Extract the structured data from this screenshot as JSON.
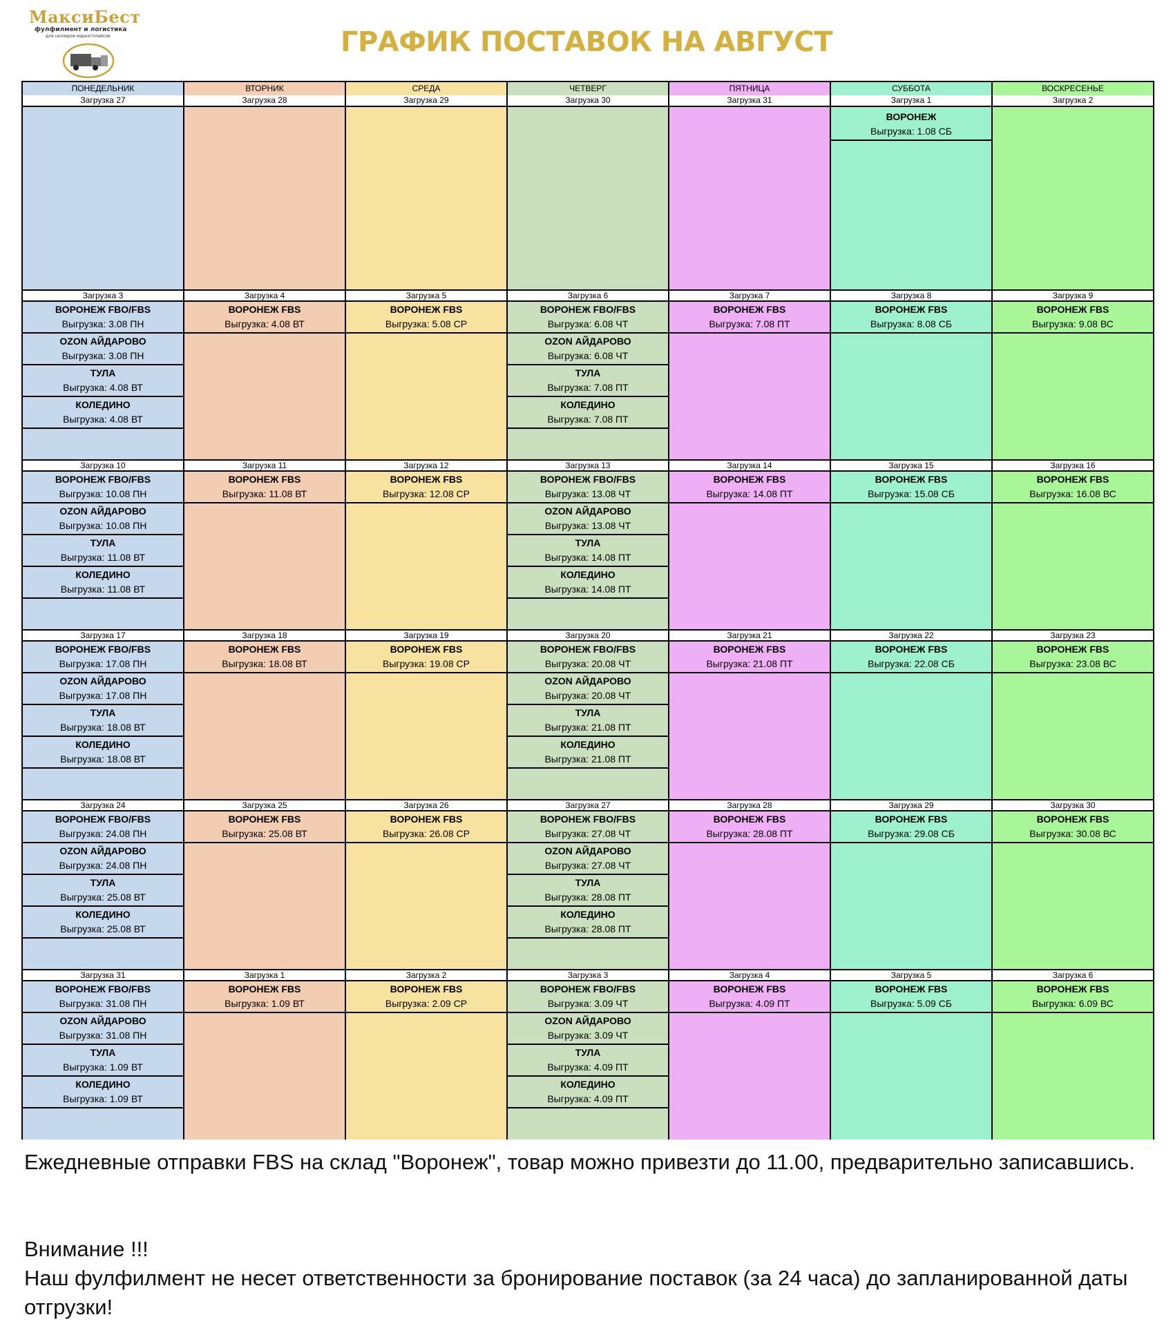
{
  "logo": {
    "name": "МаксиБест",
    "line1": "фулфилмент и логистика",
    "line2": "для селлеров маркетплейсов"
  },
  "title": "ГРАФИК ПОСТАВОК НА АВГУСТ",
  "colors": {
    "mon": "#c5d8ec",
    "tue": "#f2cdb2",
    "wed": "#f8e2a0",
    "thu": "#cadfbd",
    "fri": "#eeaff4",
    "sat": "#9df1cf",
    "sun": "#a8f698",
    "title": "#d4b040"
  },
  "days": [
    {
      "name": "ПОНЕДЕЛЬНИК",
      "color": "#c5d8ec",
      "weeks": [
        {
          "load": "Загрузка 27",
          "entries": []
        },
        {
          "load": "Загрузка 3",
          "entries": [
            {
              "name": "ВОРОНЕЖ FBO/FBS",
              "date": "Выгрузка: 3.08 ПН"
            },
            {
              "name": "OZON АЙДАРОВО",
              "date": "Выгрузка: 3.08 ПН"
            },
            {
              "name": "ТУЛА",
              "date": "Выгрузка: 4.08 ВТ"
            },
            {
              "name": "КОЛЕДИНО",
              "date": "Выгрузка: 4.08 ВТ"
            }
          ]
        },
        {
          "load": "Загрузка 10",
          "entries": [
            {
              "name": "ВОРОНЕЖ FBO/FBS",
              "date": "Выгрузка: 10.08 ПН"
            },
            {
              "name": "OZON АЙДАРОВО",
              "date": "Выгрузка: 10.08 ПН"
            },
            {
              "name": "ТУЛА",
              "date": "Выгрузка: 11.08 ВТ"
            },
            {
              "name": "КОЛЕДИНО",
              "date": "Выгрузка: 11.08 ВТ"
            }
          ]
        },
        {
          "load": "Загрузка 17",
          "entries": [
            {
              "name": "ВОРОНЕЖ FBO/FBS",
              "date": "Выгрузка: 17.08 ПН"
            },
            {
              "name": "OZON АЙДАРОВО",
              "date": "Выгрузка: 17.08 ПН"
            },
            {
              "name": "ТУЛА",
              "date": "Выгрузка: 18.08 ВТ"
            },
            {
              "name": "КОЛЕДИНО",
              "date": "Выгрузка: 18.08 ВТ"
            }
          ]
        },
        {
          "load": "Загрузка 24",
          "entries": [
            {
              "name": "ВОРОНЕЖ FBO/FBS",
              "date": "Выгрузка: 24.08 ПН"
            },
            {
              "name": "OZON АЙДАРОВО",
              "date": "Выгрузка: 24.08 ПН"
            },
            {
              "name": "ТУЛА",
              "date": "Выгрузка: 25.08 ВТ"
            },
            {
              "name": "КОЛЕДИНО",
              "date": "Выгрузка: 25.08 ВТ"
            }
          ]
        },
        {
          "load": "Загрузка 31",
          "entries": [
            {
              "name": "ВОРОНЕЖ FBO/FBS",
              "date": "Выгрузка: 31.08 ПН"
            },
            {
              "name": "OZON АЙДАРОВО",
              "date": "Выгрузка: 31.08 ПН"
            },
            {
              "name": "ТУЛА",
              "date": "Выгрузка: 1.09 ВТ"
            },
            {
              "name": "КОЛЕДИНО",
              "date": "Выгрузка: 1.09 ВТ"
            }
          ]
        }
      ]
    },
    {
      "name": "ВТОРНИК",
      "color": "#f2cdb2",
      "weeks": [
        {
          "load": "Загрузка 28",
          "entries": []
        },
        {
          "load": "Загрузка 4",
          "entries": [
            {
              "name": "ВОРОНЕЖ FBS",
              "date": "Выгрузка: 4.08 ВТ"
            }
          ]
        },
        {
          "load": "Загрузка 11",
          "entries": [
            {
              "name": "ВОРОНЕЖ FBS",
              "date": "Выгрузка: 11.08 ВТ"
            }
          ]
        },
        {
          "load": "Загрузка 18",
          "entries": [
            {
              "name": "ВОРОНЕЖ FBS",
              "date": "Выгрузка: 18.08 ВТ"
            }
          ]
        },
        {
          "load": "Загрузка 25",
          "entries": [
            {
              "name": "ВОРОНЕЖ FBS",
              "date": "Выгрузка: 25.08 ВТ"
            }
          ]
        },
        {
          "load": "Загрузка 1",
          "entries": [
            {
              "name": "ВОРОНЕЖ FBS",
              "date": "Выгрузка: 1.09 ВТ"
            }
          ]
        }
      ]
    },
    {
      "name": "СРЕДА",
      "color": "#f8e2a0",
      "weeks": [
        {
          "load": "Загрузка 29",
          "entries": []
        },
        {
          "load": "Загрузка 5",
          "entries": [
            {
              "name": "ВОРОНЕЖ FBS",
              "date": "Выгрузка: 5.08 СР"
            }
          ]
        },
        {
          "load": "Загрузка 12",
          "entries": [
            {
              "name": "ВОРОНЕЖ FBS",
              "date": "Выгрузка: 12.08 СР"
            }
          ]
        },
        {
          "load": "Загрузка 19",
          "entries": [
            {
              "name": "ВОРОНЕЖ FBS",
              "date": "Выгрузка: 19.08 СР"
            }
          ]
        },
        {
          "load": "Загрузка 26",
          "entries": [
            {
              "name": "ВОРОНЕЖ FBS",
              "date": "Выгрузка: 26.08 СР"
            }
          ]
        },
        {
          "load": "Загрузка 2",
          "entries": [
            {
              "name": "ВОРОНЕЖ FBS",
              "date": "Выгрузка: 2.09 СР"
            }
          ]
        }
      ]
    },
    {
      "name": "ЧЕТВЕРГ",
      "color": "#cadfbd",
      "weeks": [
        {
          "load": "Загрузка 30",
          "entries": []
        },
        {
          "load": "Загрузка 6",
          "entries": [
            {
              "name": "ВОРОНЕЖ FBO/FBS",
              "date": "Выгрузка: 6.08 ЧТ"
            },
            {
              "name": "OZON АЙДАРОВО",
              "date": "Выгрузка: 6.08 ЧТ"
            },
            {
              "name": "ТУЛА",
              "date": "Выгрузка: 7.08 ПТ"
            },
            {
              "name": "КОЛЕДИНО",
              "date": "Выгрузка: 7.08 ПТ"
            }
          ]
        },
        {
          "load": "Загрузка 13",
          "entries": [
            {
              "name": "ВОРОНЕЖ FBO/FBS",
              "date": "Выгрузка: 13.08 ЧТ"
            },
            {
              "name": "OZON АЙДАРОВО",
              "date": "Выгрузка: 13.08 ЧТ"
            },
            {
              "name": "ТУЛА",
              "date": "Выгрузка: 14.08 ПТ"
            },
            {
              "name": "КОЛЕДИНО",
              "date": "Выгрузка: 14.08 ПТ"
            }
          ]
        },
        {
          "load": "Загрузка 20",
          "entries": [
            {
              "name": "ВОРОНЕЖ FBO/FBS",
              "date": "Выгрузка: 20.08 ЧТ"
            },
            {
              "name": "OZON АЙДАРОВО",
              "date": "Выгрузка: 20.08 ЧТ"
            },
            {
              "name": "ТУЛА",
              "date": "Выгрузка: 21.08 ПТ"
            },
            {
              "name": "КОЛЕДИНО",
              "date": "Выгрузка: 21.08 ПТ"
            }
          ]
        },
        {
          "load": "Загрузка 27",
          "entries": [
            {
              "name": "ВОРОНЕЖ FBO/FBS",
              "date": "Выгрузка: 27.08 ЧТ"
            },
            {
              "name": "OZON АЙДАРОВО",
              "date": "Выгрузка: 27.08 ЧТ"
            },
            {
              "name": "ТУЛА",
              "date": "Выгрузка: 28.08 ПТ"
            },
            {
              "name": "КОЛЕДИНО",
              "date": "Выгрузка: 28.08 ПТ"
            }
          ]
        },
        {
          "load": "Загрузка 3",
          "entries": [
            {
              "name": "ВОРОНЕЖ FBO/FBS",
              "date": "Выгрузка: 3.09 ЧТ"
            },
            {
              "name": "OZON АЙДАРОВО",
              "date": "Выгрузка: 3.09 ЧТ"
            },
            {
              "name": "ТУЛА",
              "date": "Выгрузка: 4.09 ПТ"
            },
            {
              "name": "КОЛЕДИНО",
              "date": "Выгрузка: 4.09 ПТ"
            }
          ]
        }
      ]
    },
    {
      "name": "ПЯТНИЦА",
      "color": "#eeaff4",
      "weeks": [
        {
          "load": "Загрузка 31",
          "entries": []
        },
        {
          "load": "Загрузка 7",
          "entries": [
            {
              "name": "ВОРОНЕЖ FBS",
              "date": "Выгрузка: 7.08 ПТ"
            }
          ]
        },
        {
          "load": "Загрузка 14",
          "entries": [
            {
              "name": "ВОРОНЕЖ FBS",
              "date": "Выгрузка: 14.08 ПТ"
            }
          ]
        },
        {
          "load": "Загрузка 21",
          "entries": [
            {
              "name": "ВОРОНЕЖ FBS",
              "date": "Выгрузка: 21.08 ПТ"
            }
          ]
        },
        {
          "load": "Загрузка 28",
          "entries": [
            {
              "name": "ВОРОНЕЖ FBS",
              "date": "Выгрузка: 28.08 ПТ"
            }
          ]
        },
        {
          "load": "Загрузка 4",
          "entries": [
            {
              "name": "ВОРОНЕЖ FBS",
              "date": "Выгрузка: 4.09 ПТ"
            }
          ]
        }
      ]
    },
    {
      "name": "СУББОТА",
      "color": "#9df1cf",
      "weeks": [
        {
          "load": "Загрузка 1",
          "entries": [
            {
              "name": "ВОРОНЕЖ",
              "date": "Выгрузка: 1.08 СБ"
            }
          ]
        },
        {
          "load": "Загрузка 8",
          "entries": [
            {
              "name": "ВОРОНЕЖ FBS",
              "date": "Выгрузка: 8.08 СБ"
            }
          ]
        },
        {
          "load": "Загрузка 15",
          "entries": [
            {
              "name": "ВОРОНЕЖ FBS",
              "date": "Выгрузка: 15.08 СБ"
            }
          ]
        },
        {
          "load": "Загрузка 22",
          "entries": [
            {
              "name": "ВОРОНЕЖ FBS",
              "date": "Выгрузка: 22.08 СБ"
            }
          ]
        },
        {
          "load": "Загрузка 29",
          "entries": [
            {
              "name": "ВОРОНЕЖ FBS",
              "date": "Выгрузка: 29.08 СБ"
            }
          ]
        },
        {
          "load": "Загрузка 5",
          "entries": [
            {
              "name": "ВОРОНЕЖ FBS",
              "date": "Выгрузка: 5.09 СБ"
            }
          ]
        }
      ]
    },
    {
      "name": "ВОСКРЕСЕНЬЕ",
      "color": "#a8f698",
      "weeks": [
        {
          "load": "Загрузка 2",
          "entries": []
        },
        {
          "load": "Загрузка 9",
          "entries": [
            {
              "name": "ВОРОНЕЖ FBS",
              "date": "Выгрузка: 9.08 ВС"
            }
          ]
        },
        {
          "load": "Загрузка 16",
          "entries": [
            {
              "name": "ВОРОНЕЖ FBS",
              "date": "Выгрузка: 16.08 ВС"
            }
          ]
        },
        {
          "load": "Загрузка 23",
          "entries": [
            {
              "name": "ВОРОНЕЖ FBS",
              "date": "Выгрузка: 23.08 ВС"
            }
          ]
        },
        {
          "load": "Загрузка 30",
          "entries": [
            {
              "name": "ВОРОНЕЖ FBS",
              "date": "Выгрузка: 30.08 ВС"
            }
          ]
        },
        {
          "load": "Загрузка 6",
          "entries": [
            {
              "name": "ВОРОНЕЖ FBS",
              "date": "Выгрузка: 6.09 ВС"
            }
          ]
        }
      ]
    }
  ],
  "footer": {
    "note": "Ежедневные отправки FBS на склад \"Воронеж\", товар можно привезти до 11.00, предварительно записавшись.",
    "attention": "Внимание !!!",
    "warning": "Наш фулфилмент не несет ответственности за бронирование поставок (за 24 часа) до запланированной даты отгрузки!"
  }
}
